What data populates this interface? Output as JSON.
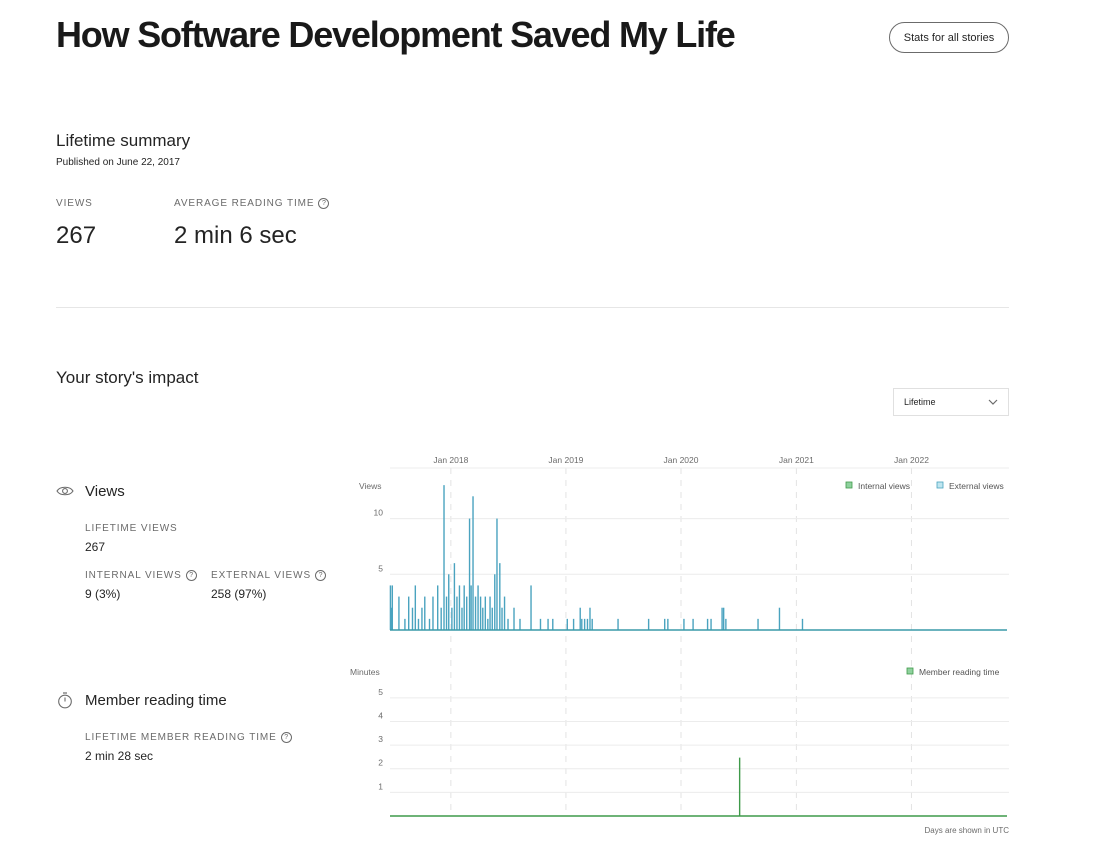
{
  "header": {
    "title": "How Software Development Saved My Life",
    "stats_button": "Stats for all stories"
  },
  "summary": {
    "heading": "Lifetime summary",
    "published": "Published on June 22, 2017",
    "views_label": "VIEWS",
    "views_value": "267",
    "avg_label": "AVERAGE READING TIME",
    "avg_value": "2 min 6 sec"
  },
  "impact": {
    "heading": "Your story's impact",
    "range_select": "Lifetime"
  },
  "views_section": {
    "title": "Views",
    "lifetime_label": "LIFETIME VIEWS",
    "lifetime_value": "267",
    "internal_label": "INTERNAL VIEWS",
    "internal_value": "9 (3%)",
    "external_label": "EXTERNAL VIEWS",
    "external_value": "258 (97%)"
  },
  "reading_section": {
    "title": "Member reading time",
    "lifetime_label": "LIFETIME MEMBER READING TIME",
    "lifetime_value": "2 min 28 sec"
  },
  "footer_note": "Days are shown in UTC",
  "colors": {
    "external": "#7ec4d9",
    "external_dark": "#4aa3bf",
    "internal": "#3f9a4a",
    "base_line": "#3a9aa8",
    "grid": "#ececec"
  },
  "chart_data": [
    {
      "type": "bar",
      "ylabel": "Views",
      "x_ticks": [
        "Jan 2018",
        "Jan 2019",
        "Jan 2020",
        "Jan 2021",
        "Jan 2022"
      ],
      "yticks": [
        5,
        10
      ],
      "ylim": [
        0,
        14
      ],
      "legend": "top-right",
      "series": [
        {
          "name": "Internal views"
        },
        {
          "name": "External views",
          "values": [
            {
              "x": "2017-06-23",
              "y": 4
            },
            {
              "x": "2017-06-26",
              "y": 2
            },
            {
              "x": "2017-06-29",
              "y": 4
            },
            {
              "x": "2017-07-20",
              "y": 3
            },
            {
              "x": "2017-08-08",
              "y": 1
            },
            {
              "x": "2017-08-20",
              "y": 3
            },
            {
              "x": "2017-09-01",
              "y": 2
            },
            {
              "x": "2017-09-10",
              "y": 4
            },
            {
              "x": "2017-09-20",
              "y": 1
            },
            {
              "x": "2017-10-01",
              "y": 2
            },
            {
              "x": "2017-10-10",
              "y": 3
            },
            {
              "x": "2017-10-25",
              "y": 1
            },
            {
              "x": "2017-11-05",
              "y": 3
            },
            {
              "x": "2017-11-20",
              "y": 4
            },
            {
              "x": "2017-12-01",
              "y": 2
            },
            {
              "x": "2017-12-10",
              "y": 13
            },
            {
              "x": "2017-12-18",
              "y": 3
            },
            {
              "x": "2017-12-25",
              "y": 5
            },
            {
              "x": "2018-01-04",
              "y": 2
            },
            {
              "x": "2018-01-12",
              "y": 6
            },
            {
              "x": "2018-01-20",
              "y": 3
            },
            {
              "x": "2018-01-28",
              "y": 4
            },
            {
              "x": "2018-02-05",
              "y": 2
            },
            {
              "x": "2018-02-12",
              "y": 4
            },
            {
              "x": "2018-02-20",
              "y": 3
            },
            {
              "x": "2018-03-01",
              "y": 10
            },
            {
              "x": "2018-03-06",
              "y": 4
            },
            {
              "x": "2018-03-12",
              "y": 12
            },
            {
              "x": "2018-03-20",
              "y": 3
            },
            {
              "x": "2018-03-28",
              "y": 4
            },
            {
              "x": "2018-04-05",
              "y": 3
            },
            {
              "x": "2018-04-12",
              "y": 2
            },
            {
              "x": "2018-04-20",
              "y": 3
            },
            {
              "x": "2018-04-28",
              "y": 1
            },
            {
              "x": "2018-05-05",
              "y": 3
            },
            {
              "x": "2018-05-12",
              "y": 2
            },
            {
              "x": "2018-05-20",
              "y": 5
            },
            {
              "x": "2018-05-27",
              "y": 10
            },
            {
              "x": "2018-06-05",
              "y": 6
            },
            {
              "x": "2018-06-12",
              "y": 2
            },
            {
              "x": "2018-06-20",
              "y": 3
            },
            {
              "x": "2018-07-01",
              "y": 1
            },
            {
              "x": "2018-07-20",
              "y": 2
            },
            {
              "x": "2018-08-08",
              "y": 1
            },
            {
              "x": "2018-09-12",
              "y": 4
            },
            {
              "x": "2018-10-12",
              "y": 1
            },
            {
              "x": "2018-11-05",
              "y": 1
            },
            {
              "x": "2018-11-20",
              "y": 1
            },
            {
              "x": "2019-01-05",
              "y": 1
            },
            {
              "x": "2019-01-25",
              "y": 1
            },
            {
              "x": "2019-02-15",
              "y": 2
            },
            {
              "x": "2019-02-20",
              "y": 1
            },
            {
              "x": "2019-03-01",
              "y": 1
            },
            {
              "x": "2019-03-10",
              "y": 1
            },
            {
              "x": "2019-03-18",
              "y": 2
            },
            {
              "x": "2019-03-25",
              "y": 1
            },
            {
              "x": "2019-06-15",
              "y": 1
            },
            {
              "x": "2019-09-20",
              "y": 1
            },
            {
              "x": "2019-11-10",
              "y": 1
            },
            {
              "x": "2019-11-20",
              "y": 1
            },
            {
              "x": "2020-01-10",
              "y": 1
            },
            {
              "x": "2020-02-08",
              "y": 1
            },
            {
              "x": "2020-03-25",
              "y": 1
            },
            {
              "x": "2020-04-05",
              "y": 1
            },
            {
              "x": "2020-05-10",
              "y": 2
            },
            {
              "x": "2020-05-15",
              "y": 2
            },
            {
              "x": "2020-05-22",
              "y": 1
            },
            {
              "x": "2020-09-01",
              "y": 1
            },
            {
              "x": "2020-11-08",
              "y": 2
            },
            {
              "x": "2021-01-20",
              "y": 1
            }
          ]
        }
      ]
    },
    {
      "type": "line",
      "ylabel": "Minutes",
      "yticks": [
        1,
        2,
        3,
        4,
        5
      ],
      "ylim": [
        0,
        5.5
      ],
      "legend": "top-right",
      "series": [
        {
          "name": "Member reading time",
          "values": [
            {
              "x": "2020-07-05",
              "y": 2.47
            }
          ]
        }
      ]
    }
  ]
}
